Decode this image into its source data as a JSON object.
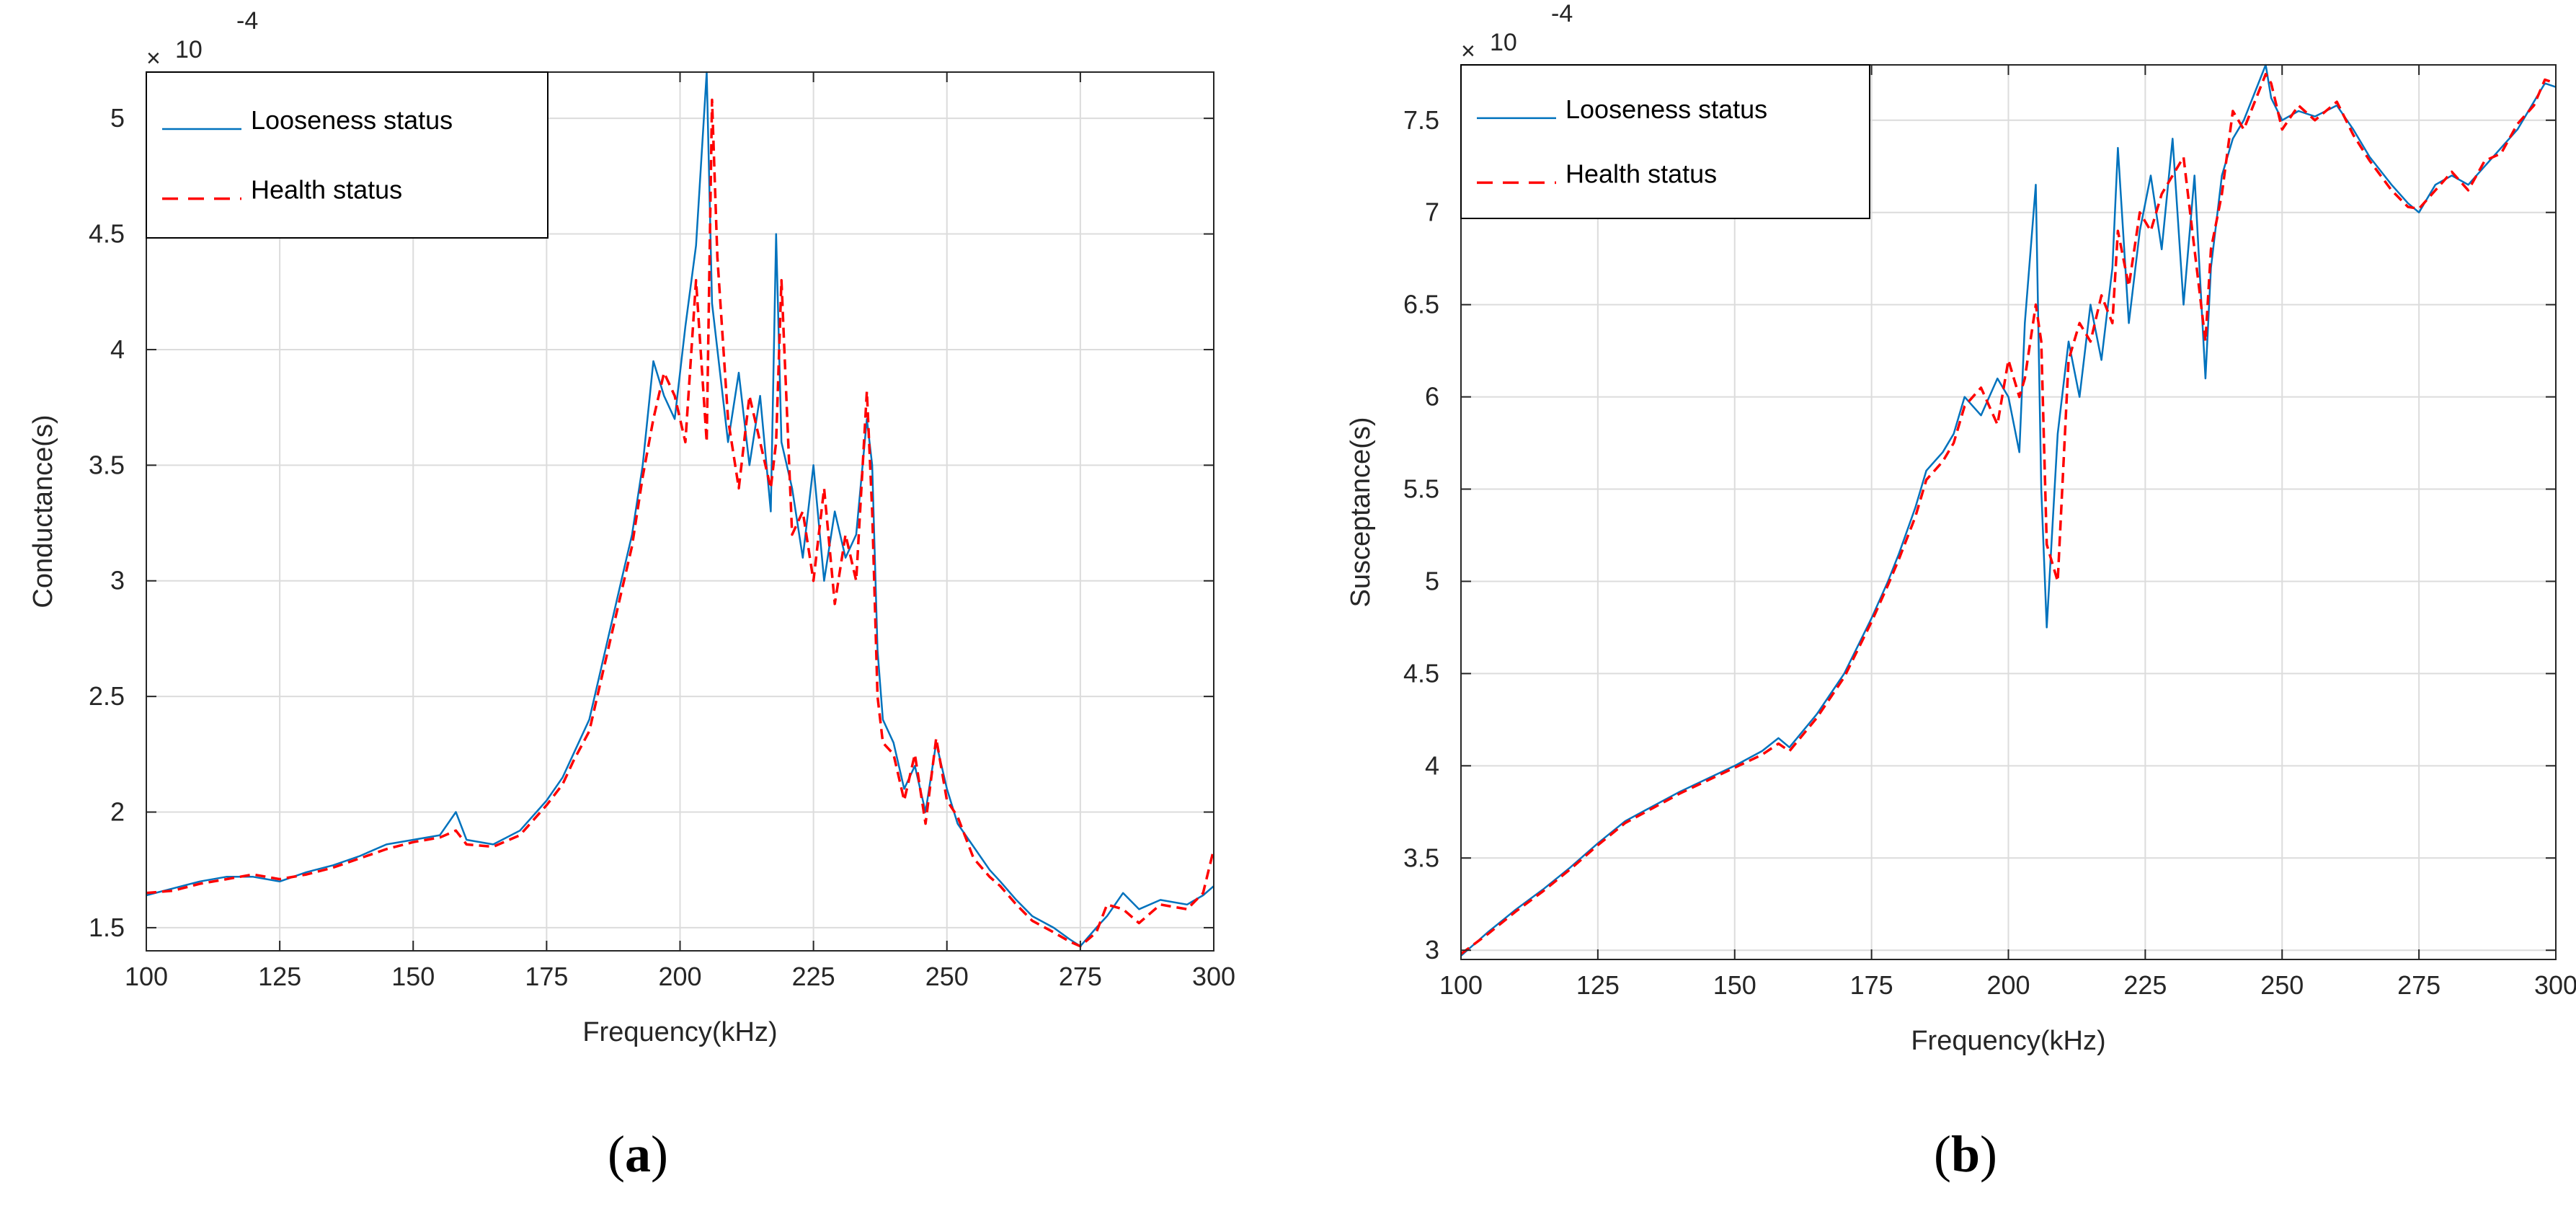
{
  "colors": {
    "looseness": "#0072BD",
    "health": "#FF0000",
    "grid": "#DCDCDC",
    "axis": "#262626"
  },
  "chart_data": [
    {
      "id": "a",
      "type": "line",
      "caption_letter": "a",
      "xlabel": "Frequency(kHz)",
      "ylabel": "Conductance(s)",
      "exponent_base": "10",
      "exponent_power": "-4",
      "exponent_prefix": "×",
      "xlim": [
        100,
        300
      ],
      "ylim": [
        1.4,
        5.2
      ],
      "xticks": [
        100,
        125,
        150,
        175,
        200,
        225,
        250,
        275,
        300
      ],
      "xtick_labels": [
        "100",
        "125",
        "150",
        "175",
        "200",
        "225",
        "250",
        "275",
        "300"
      ],
      "yticks": [
        1.5,
        2,
        2.5,
        3,
        3.5,
        4,
        4.5,
        5
      ],
      "ytick_labels": [
        "1.5",
        "2",
        "2.5",
        "3",
        "3.5",
        "4",
        "4.5",
        "5"
      ],
      "grid": true,
      "legend_position": "top-left",
      "series": [
        {
          "name": "Looseness status",
          "style": "solid",
          "x": [
            100,
            105,
            110,
            115,
            120,
            125,
            130,
            135,
            140,
            145,
            150,
            155,
            158,
            160,
            165,
            170,
            175,
            178,
            180,
            183,
            185,
            187,
            189,
            191,
            193,
            195,
            197,
            199,
            201,
            203,
            205,
            206,
            207,
            209,
            211,
            213,
            215,
            217,
            218,
            219,
            221,
            223,
            225,
            227,
            229,
            231,
            233,
            235,
            236,
            237,
            238,
            240,
            242,
            244,
            246,
            248,
            250,
            252,
            255,
            258,
            260,
            263,
            266,
            270,
            273,
            275,
            278,
            280,
            283,
            286,
            290,
            295,
            298,
            300
          ],
          "y": [
            1.64,
            1.67,
            1.7,
            1.72,
            1.72,
            1.7,
            1.74,
            1.77,
            1.81,
            1.86,
            1.88,
            1.9,
            2.0,
            1.88,
            1.86,
            1.92,
            2.05,
            2.15,
            2.25,
            2.4,
            2.6,
            2.8,
            3.0,
            3.2,
            3.5,
            3.95,
            3.8,
            3.7,
            4.1,
            4.45,
            5.2,
            4.2,
            4.0,
            3.6,
            3.9,
            3.5,
            3.8,
            3.3,
            4.5,
            3.6,
            3.4,
            3.1,
            3.5,
            3.0,
            3.3,
            3.1,
            3.2,
            3.7,
            3.5,
            2.7,
            2.4,
            2.3,
            2.1,
            2.2,
            2.0,
            2.3,
            2.1,
            1.95,
            1.85,
            1.75,
            1.7,
            1.62,
            1.55,
            1.5,
            1.45,
            1.42,
            1.5,
            1.55,
            1.65,
            1.58,
            1.62,
            1.6,
            1.64,
            1.68
          ]
        },
        {
          "name": "Health status",
          "style": "dashed",
          "x": [
            100,
            105,
            110,
            115,
            120,
            125,
            130,
            135,
            140,
            145,
            150,
            155,
            158,
            160,
            165,
            170,
            175,
            178,
            180,
            183,
            185,
            187,
            189,
            191,
            193,
            195,
            197,
            199,
            201,
            203,
            205,
            206,
            207,
            209,
            211,
            213,
            215,
            217,
            218,
            219,
            221,
            223,
            225,
            227,
            229,
            231,
            233,
            235,
            236,
            237,
            238,
            240,
            242,
            244,
            246,
            248,
            250,
            252,
            255,
            258,
            260,
            263,
            266,
            270,
            273,
            275,
            278,
            280,
            283,
            286,
            290,
            295,
            298,
            300
          ],
          "y": [
            1.65,
            1.66,
            1.69,
            1.71,
            1.73,
            1.71,
            1.73,
            1.76,
            1.8,
            1.84,
            1.87,
            1.89,
            1.92,
            1.86,
            1.85,
            1.9,
            2.03,
            2.12,
            2.22,
            2.35,
            2.55,
            2.75,
            2.95,
            3.15,
            3.45,
            3.7,
            3.9,
            3.8,
            3.6,
            4.3,
            3.6,
            5.08,
            4.4,
            3.7,
            3.4,
            3.8,
            3.6,
            3.4,
            3.6,
            4.3,
            3.2,
            3.3,
            3.0,
            3.4,
            2.9,
            3.2,
            3.0,
            3.82,
            3.3,
            2.5,
            2.3,
            2.25,
            2.05,
            2.25,
            1.95,
            2.32,
            2.05,
            1.98,
            1.8,
            1.72,
            1.68,
            1.6,
            1.53,
            1.48,
            1.44,
            1.42,
            1.48,
            1.6,
            1.58,
            1.52,
            1.6,
            1.58,
            1.65,
            1.84
          ]
        }
      ]
    },
    {
      "id": "b",
      "type": "line",
      "caption_letter": "b",
      "xlabel": "Frequency(kHz)",
      "ylabel": "Susceptance(s)",
      "exponent_base": "10",
      "exponent_power": "-4",
      "exponent_prefix": "×",
      "xlim": [
        100,
        300
      ],
      "ylim": [
        2.95,
        7.8
      ],
      "xticks": [
        100,
        125,
        150,
        175,
        200,
        225,
        250,
        275,
        300
      ],
      "xtick_labels": [
        "100",
        "125",
        "150",
        "175",
        "200",
        "225",
        "250",
        "275",
        "300"
      ],
      "yticks": [
        3,
        3.5,
        4,
        4.5,
        5,
        5.5,
        6,
        6.5,
        7,
        7.5
      ],
      "ytick_labels": [
        "3",
        "3.5",
        "4",
        "4.5",
        "5",
        "5.5",
        "6",
        "6.5",
        "7",
        "7.5"
      ],
      "grid": true,
      "legend_position": "top-left",
      "series": [
        {
          "name": "Looseness status",
          "style": "solid",
          "x": [
            100,
            105,
            110,
            115,
            120,
            125,
            130,
            135,
            140,
            145,
            150,
            155,
            158,
            160,
            165,
            170,
            175,
            178,
            180,
            183,
            185,
            188,
            190,
            192,
            195,
            198,
            200,
            202,
            203,
            205,
            206,
            207,
            209,
            211,
            213,
            215,
            217,
            219,
            220,
            222,
            224,
            226,
            228,
            230,
            232,
            234,
            236,
            237,
            239,
            241,
            243,
            245,
            247,
            248,
            250,
            253,
            256,
            260,
            263,
            266,
            270,
            273,
            275,
            278,
            281,
            284,
            287,
            290,
            293,
            296,
            298,
            300
          ],
          "y": [
            2.97,
            3.1,
            3.22,
            3.33,
            3.45,
            3.58,
            3.7,
            3.78,
            3.86,
            3.93,
            4.0,
            4.08,
            4.15,
            4.1,
            4.28,
            4.5,
            4.8,
            5.0,
            5.15,
            5.4,
            5.6,
            5.7,
            5.8,
            6.0,
            5.9,
            6.1,
            6.0,
            5.7,
            6.4,
            7.15,
            5.5,
            4.75,
            5.8,
            6.3,
            6.0,
            6.5,
            6.2,
            6.7,
            7.35,
            6.4,
            6.9,
            7.2,
            6.8,
            7.4,
            6.5,
            7.2,
            6.1,
            6.7,
            7.2,
            7.4,
            7.5,
            7.65,
            7.8,
            7.62,
            7.5,
            7.55,
            7.52,
            7.58,
            7.45,
            7.3,
            7.15,
            7.05,
            7.0,
            7.15,
            7.2,
            7.15,
            7.25,
            7.35,
            7.45,
            7.6,
            7.7,
            7.68
          ]
        },
        {
          "name": "Health status",
          "style": "dashed",
          "x": [
            100,
            105,
            110,
            115,
            120,
            125,
            130,
            135,
            140,
            145,
            150,
            155,
            158,
            160,
            165,
            170,
            175,
            178,
            180,
            183,
            185,
            188,
            190,
            192,
            195,
            198,
            200,
            202,
            203,
            205,
            206,
            207,
            209,
            211,
            213,
            215,
            217,
            219,
            220,
            222,
            224,
            226,
            228,
            230,
            232,
            234,
            236,
            237,
            239,
            241,
            243,
            245,
            247,
            248,
            250,
            253,
            256,
            260,
            263,
            266,
            270,
            273,
            275,
            278,
            281,
            284,
            287,
            290,
            293,
            296,
            298,
            300
          ],
          "y": [
            2.98,
            3.09,
            3.21,
            3.32,
            3.44,
            3.57,
            3.69,
            3.77,
            3.85,
            3.92,
            3.99,
            4.06,
            4.12,
            4.08,
            4.26,
            4.48,
            4.78,
            4.98,
            5.12,
            5.35,
            5.55,
            5.65,
            5.75,
            5.95,
            6.05,
            5.85,
            6.2,
            6.0,
            6.1,
            6.5,
            6.3,
            5.2,
            5.0,
            6.2,
            6.4,
            6.3,
            6.55,
            6.4,
            6.9,
            6.6,
            7.0,
            6.9,
            7.1,
            7.2,
            7.3,
            6.8,
            6.3,
            6.8,
            7.1,
            7.55,
            7.45,
            7.6,
            7.75,
            7.7,
            7.45,
            7.58,
            7.5,
            7.6,
            7.42,
            7.28,
            7.12,
            7.03,
            7.02,
            7.12,
            7.22,
            7.12,
            7.28,
            7.32,
            7.48,
            7.58,
            7.72,
            7.7
          ]
        }
      ]
    }
  ]
}
